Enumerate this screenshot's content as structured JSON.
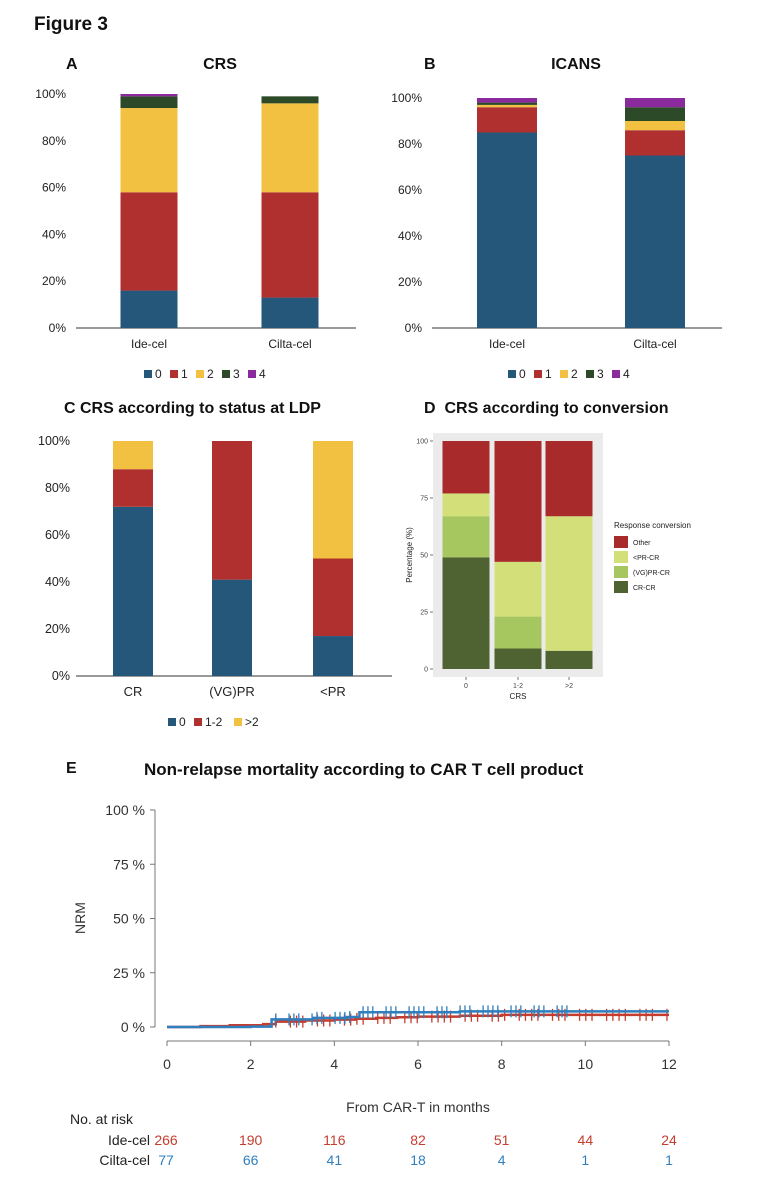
{
  "figure_label": "Figure 3",
  "colors": {
    "c0": "#24577a",
    "c1": "#b03030",
    "c2": "#f3c141",
    "c3": "#2c4a28",
    "c4": "#8b2a9c",
    "d_other": "#a82a2a",
    "d_ltpr": "#d3e07a",
    "d_vgpr": "#a6c75f",
    "d_crcr": "#4f6332",
    "ide": "#c43d2e",
    "cilta": "#2f7fbf"
  },
  "chart_data": [
    {
      "panel": "A",
      "type": "bar",
      "stacked": true,
      "title": "CRS",
      "categories": [
        "Ide-cel",
        "Cilta-cel"
      ],
      "y_ticks": [
        "0%",
        "20%",
        "40%",
        "60%",
        "80%",
        "100%"
      ],
      "ylim": [
        0,
        100
      ],
      "series": [
        {
          "name": "0",
          "values": [
            16,
            13
          ]
        },
        {
          "name": "1",
          "values": [
            42,
            45
          ]
        },
        {
          "name": "2",
          "values": [
            36,
            38
          ]
        },
        {
          "name": "3",
          "values": [
            5,
            3
          ]
        },
        {
          "name": "4",
          "values": [
            1,
            0
          ]
        }
      ],
      "legend_position": "bottom"
    },
    {
      "panel": "B",
      "type": "bar",
      "stacked": true,
      "title": "ICANS",
      "categories": [
        "Ide-cel",
        "Cilta-cel"
      ],
      "y_ticks": [
        "0%",
        "20%",
        "40%",
        "60%",
        "80%",
        "100%"
      ],
      "ylim": [
        0,
        100
      ],
      "series": [
        {
          "name": "0",
          "values": [
            85,
            75
          ]
        },
        {
          "name": "1",
          "values": [
            11,
            11
          ]
        },
        {
          "name": "2",
          "values": [
            1,
            4
          ]
        },
        {
          "name": "3",
          "values": [
            1,
            6
          ]
        },
        {
          "name": "4",
          "values": [
            2,
            4
          ]
        }
      ],
      "legend_position": "bottom"
    },
    {
      "panel": "C",
      "type": "bar",
      "stacked": true,
      "title": "CRS according to status at LDP",
      "categories": [
        "CR",
        "(VG)PR",
        "<PR"
      ],
      "y_ticks": [
        "0%",
        "20%",
        "40%",
        "60%",
        "80%",
        "100%"
      ],
      "ylim": [
        0,
        100
      ],
      "series": [
        {
          "name": "0",
          "values": [
            72,
            41,
            17
          ]
        },
        {
          "name": "1-2",
          "values": [
            16,
            59,
            33
          ]
        },
        {
          "name": ">2",
          "values": [
            12,
            0,
            50
          ]
        }
      ],
      "legend_position": "bottom"
    },
    {
      "panel": "D",
      "type": "bar",
      "stacked": true,
      "title": "CRS according to conversion",
      "categories": [
        "0",
        "1-2",
        ">2"
      ],
      "xlabel": "CRS",
      "ylabel": "Percentage (%)",
      "y_ticks": [
        "0",
        "25",
        "50",
        "75",
        "100"
      ],
      "ylim": [
        0,
        100
      ],
      "series": [
        {
          "name": "CR-CR",
          "values": [
            49,
            9,
            8
          ]
        },
        {
          "name": "(VG)PR-CR",
          "values": [
            18,
            14,
            0
          ]
        },
        {
          "name": "<PR-CR",
          "values": [
            10,
            24,
            59
          ]
        },
        {
          "name": "Other",
          "values": [
            23,
            53,
            33
          ]
        }
      ],
      "legend_title": "Response conversion",
      "legend_position": "right"
    },
    {
      "panel": "E",
      "type": "line",
      "title": "Non-relapse mortality according to CAR T cell product",
      "xlabel": "From CAR-T in months",
      "ylabel": "NRM",
      "x_ticks": [
        "0",
        "2",
        "4",
        "6",
        "8",
        "10",
        "12"
      ],
      "y_ticks": [
        "0 %",
        "25 %",
        "50 %",
        "75 %",
        "100 %"
      ],
      "xlim": [
        0,
        12
      ],
      "ylim": [
        0,
        100
      ],
      "series": [
        {
          "name": "Ide-cel",
          "x": [
            0,
            0.8,
            1.5,
            2.3,
            2.6,
            3.3,
            4.0,
            4.5,
            5.0,
            5.5,
            6.0,
            7.0,
            8.0,
            12
          ],
          "y": [
            0,
            0.4,
            0.8,
            1.3,
            2.5,
            3.0,
            3.4,
            3.8,
            4.2,
            4.5,
            4.8,
            5.2,
            5.6,
            5.6
          ]
        },
        {
          "name": "Cilta-cel",
          "x": [
            0,
            2.0,
            2.5,
            3.5,
            4.3,
            4.6,
            7.0,
            12
          ],
          "y": [
            0,
            0.2,
            3.5,
            4.2,
            4.6,
            6.8,
            7.2,
            7.2
          ]
        }
      ],
      "risk_table": {
        "title": "No. at risk",
        "rows": [
          {
            "name": "Ide-cel",
            "values": [
              "266",
              "190",
              "116",
              "82",
              "51",
              "44",
              "24"
            ]
          },
          {
            "name": "Cilta-cel",
            "values": [
              "77",
              "66",
              "41",
              "18",
              "4",
              "1",
              "1"
            ]
          }
        ]
      }
    }
  ]
}
